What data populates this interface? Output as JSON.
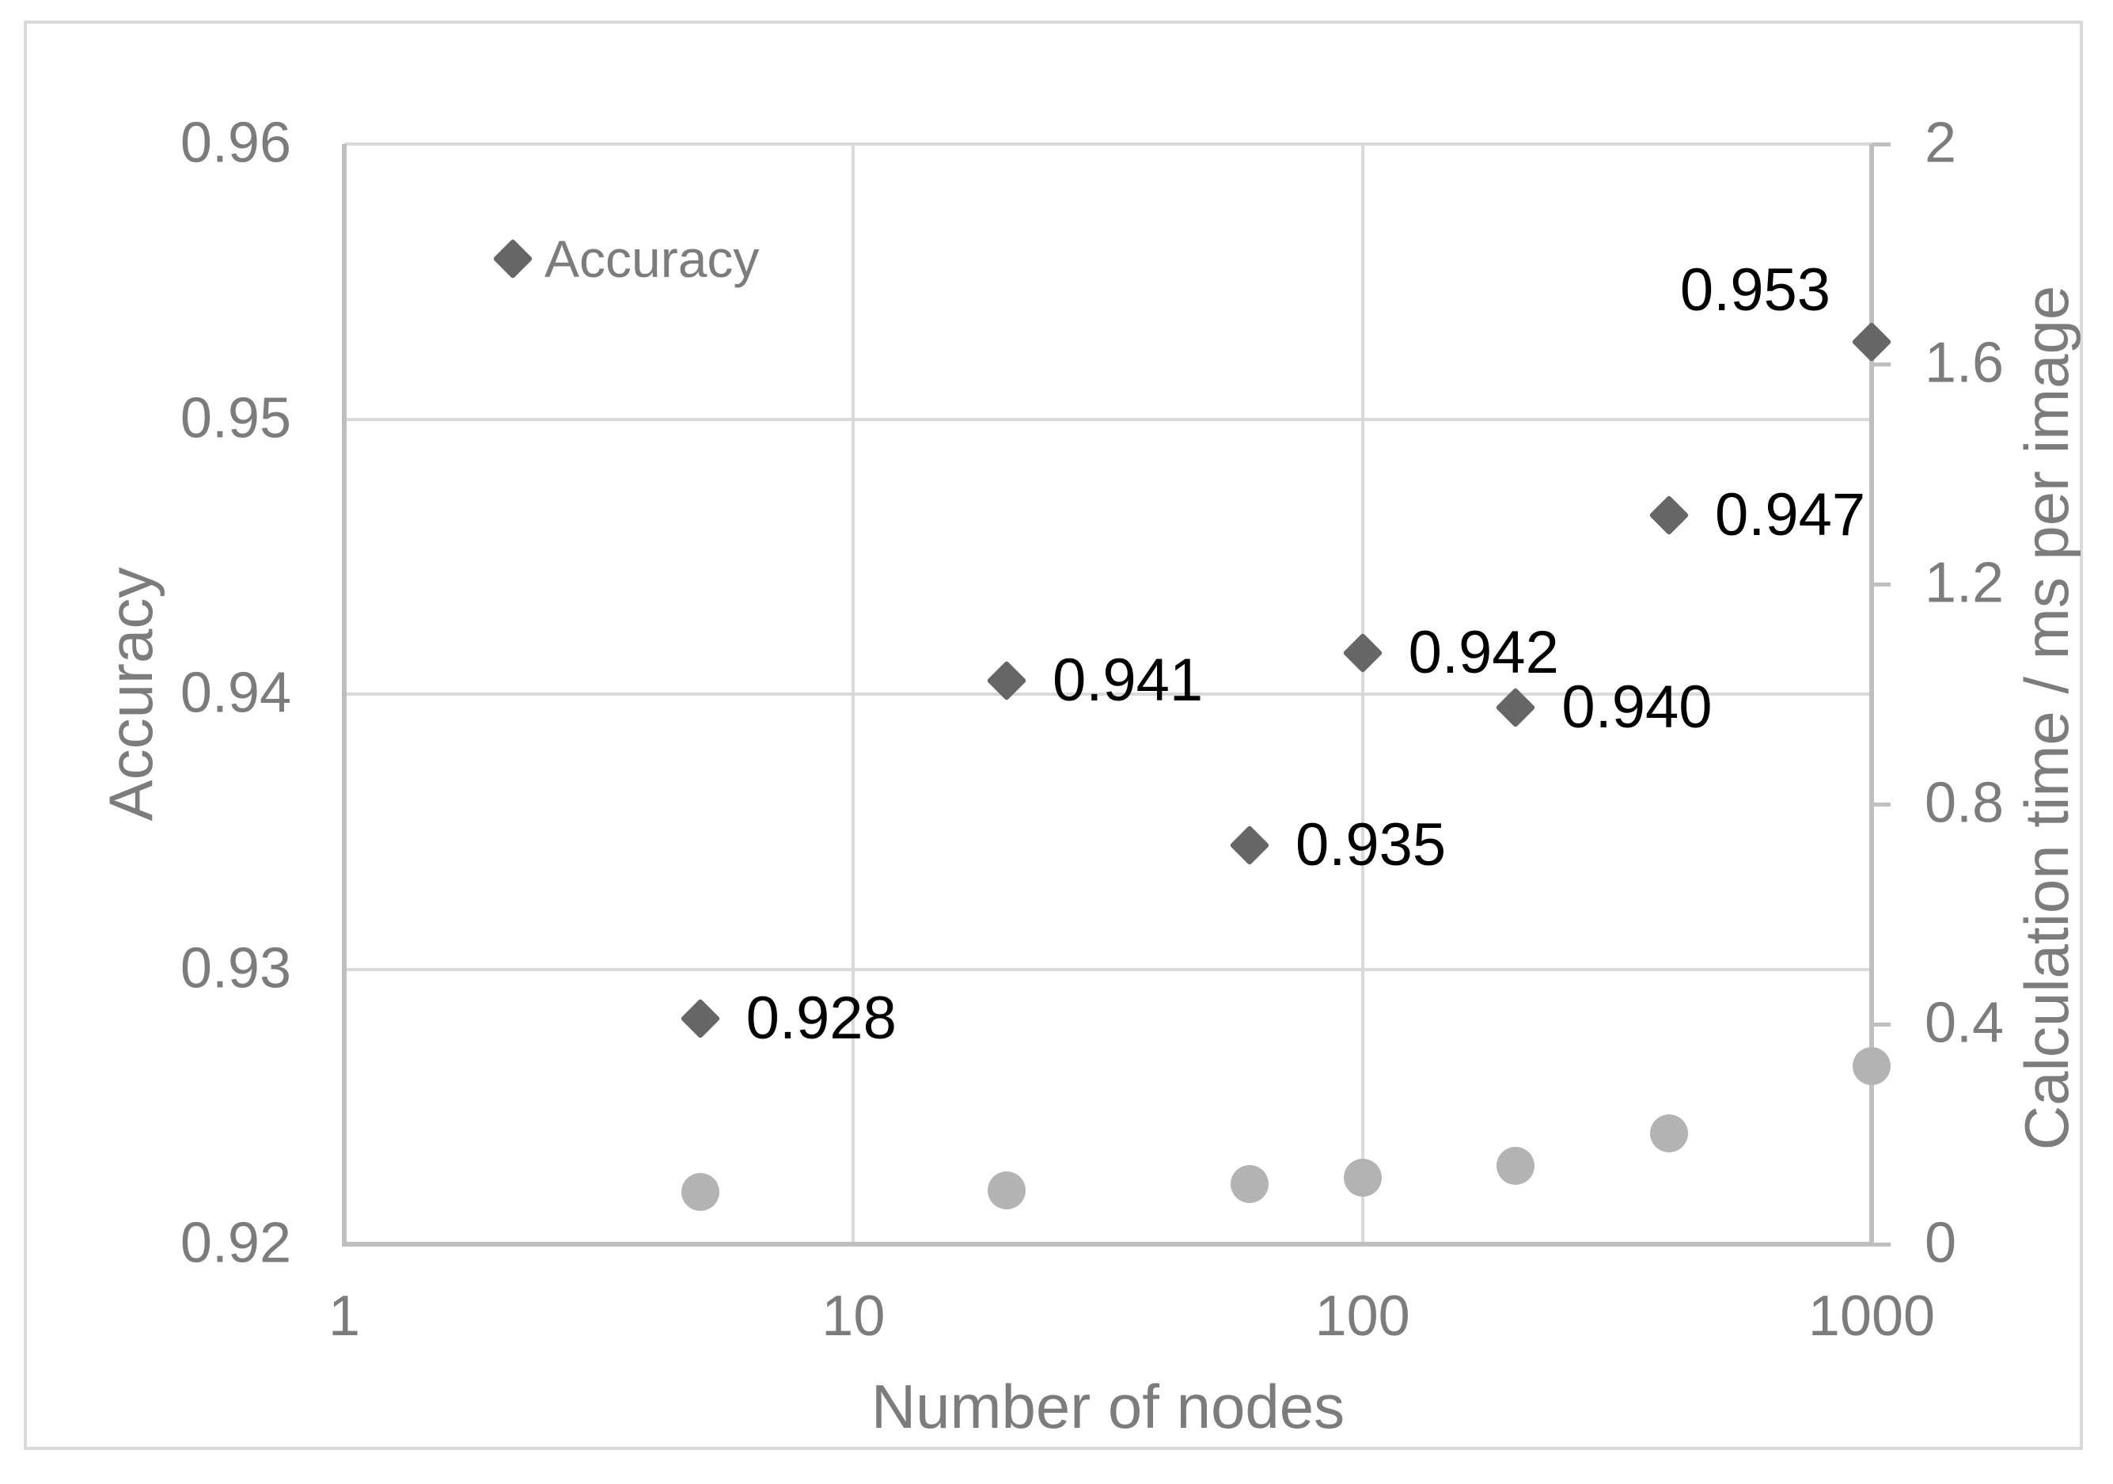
{
  "theme": {
    "background": "#ffffff",
    "border_color": "#d9d9d9",
    "gridline_color": "#d9d9d9",
    "axis_line_color": "#bfbfbf",
    "tick_text_color": "#7c7c7c",
    "data_label_color": "#000000",
    "diamond_color": "#666666",
    "circle_color": "#b3b3b3"
  },
  "legend": {
    "items": [
      {
        "label": "Accuracy",
        "marker": "diamond",
        "color": "#666666"
      }
    ],
    "position": "top-left-inside"
  },
  "chart_data": {
    "type": "scatter",
    "x": {
      "label": "Number of nodes",
      "scale": "log",
      "min": 1,
      "max": 1000,
      "ticks": [
        {
          "value": 1,
          "label": "1"
        },
        {
          "value": 10,
          "label": "10"
        },
        {
          "value": 100,
          "label": "100"
        },
        {
          "value": 1000,
          "label": "1000"
        }
      ],
      "gridlines": [
        10,
        100
      ]
    },
    "y_left": {
      "label": "Accuracy",
      "min": 0.92,
      "max": 0.96,
      "ticks": [
        {
          "value": 0.96,
          "label": "0.96"
        },
        {
          "value": 0.95,
          "label": "0.95"
        },
        {
          "value": 0.94,
          "label": "0.94"
        },
        {
          "value": 0.93,
          "label": "0.93"
        },
        {
          "value": 0.92,
          "label": "0.92"
        }
      ],
      "gridlines": [
        0.96,
        0.95,
        0.94,
        0.93
      ]
    },
    "y_right": {
      "label": "Calculation time / ms per image",
      "min": 0,
      "max": 2,
      "ticks": [
        {
          "value": 2,
          "label": "2"
        },
        {
          "value": 1.6,
          "label": "1.6"
        },
        {
          "value": 1.2,
          "label": "1.2"
        },
        {
          "value": 0.8,
          "label": "0.8"
        },
        {
          "value": 0.4,
          "label": "0.4"
        },
        {
          "value": 0,
          "label": "0"
        }
      ]
    },
    "series": [
      {
        "name": "Accuracy",
        "marker": "diamond",
        "color": "#666666",
        "axis": "left",
        "points": [
          {
            "x": 5,
            "y": 0.9282,
            "label": "0.928",
            "label_placement": "right"
          },
          {
            "x": 20,
            "y": 0.9405,
            "label": "0.941",
            "label_placement": "right"
          },
          {
            "x": 60,
            "y": 0.9345,
            "label": "0.935",
            "label_placement": "right"
          },
          {
            "x": 100,
            "y": 0.9415,
            "label": "0.942",
            "label_placement": "right"
          },
          {
            "x": 200,
            "y": 0.9395,
            "label": "0.940",
            "label_placement": "right"
          },
          {
            "x": 400,
            "y": 0.9465,
            "label": "0.947",
            "label_placement": "right"
          },
          {
            "x": 1000,
            "y": 0.9528,
            "label": "0.953",
            "label_placement": "above-left"
          }
        ]
      },
      {
        "name": null,
        "marker": "circle",
        "color": "#b3b3b3",
        "axis": "right",
        "points": [
          {
            "x": 5,
            "y": 0.095
          },
          {
            "x": 20,
            "y": 0.098
          },
          {
            "x": 60,
            "y": 0.109
          },
          {
            "x": 100,
            "y": 0.121
          },
          {
            "x": 200,
            "y": 0.142
          },
          {
            "x": 400,
            "y": 0.201
          },
          {
            "x": 1000,
            "y": 0.324
          }
        ]
      }
    ]
  }
}
